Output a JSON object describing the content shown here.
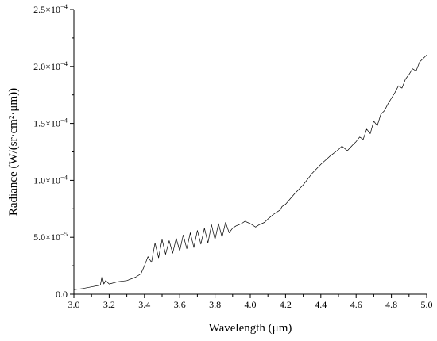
{
  "chart_data": {
    "type": "line",
    "title": "",
    "xlabel": "Wavelength (μm)",
    "ylabel": "Radiance (W/(sr·cm²·μm))",
    "xlim": [
      3.0,
      5.0
    ],
    "ylim": [
      0,
      0.00025
    ],
    "grid": false,
    "legend": "none",
    "x_ticks": [
      3.0,
      3.2,
      3.4,
      3.6,
      3.8,
      4.0,
      4.2,
      4.4,
      4.6,
      4.8,
      5.0
    ],
    "x_tick_labels": [
      "3.0",
      "3.2",
      "3.4",
      "3.6",
      "3.8",
      "4.0",
      "4.2",
      "4.4",
      "4.6",
      "4.8",
      "5.0"
    ],
    "y_ticks": [
      0,
      5e-05,
      0.0001,
      0.00015,
      0.0002,
      0.00025
    ],
    "y_tick_labels": [
      {
        "mantissa": "0.0",
        "exp": ""
      },
      {
        "mantissa": "5.0×10",
        "exp": "−5"
      },
      {
        "mantissa": "1.0×10",
        "exp": "−4"
      },
      {
        "mantissa": "1.5×10",
        "exp": "−4"
      },
      {
        "mantissa": "2.0×10",
        "exp": "−4"
      },
      {
        "mantissa": "2.5×10",
        "exp": "−4"
      }
    ],
    "series": [
      {
        "color": "#000000",
        "x": [
          3.0,
          3.05,
          3.1,
          3.15,
          3.16,
          3.17,
          3.18,
          3.2,
          3.25,
          3.3,
          3.35,
          3.38,
          3.4,
          3.42,
          3.44,
          3.46,
          3.48,
          3.5,
          3.52,
          3.54,
          3.56,
          3.58,
          3.6,
          3.62,
          3.64,
          3.66,
          3.68,
          3.7,
          3.72,
          3.74,
          3.76,
          3.78,
          3.8,
          3.82,
          3.84,
          3.86,
          3.88,
          3.9,
          3.92,
          3.95,
          3.97,
          4.0,
          4.03,
          4.05,
          4.08,
          4.1,
          4.13,
          4.15,
          4.17,
          4.18,
          4.2,
          4.25,
          4.3,
          4.35,
          4.4,
          4.45,
          4.5,
          4.52,
          4.55,
          4.58,
          4.6,
          4.62,
          4.64,
          4.66,
          4.68,
          4.7,
          4.72,
          4.74,
          4.76,
          4.78,
          4.8,
          4.82,
          4.84,
          4.86,
          4.88,
          4.9,
          4.92,
          4.94,
          4.96,
          4.98,
          5.0
        ],
        "y": [
          4e-06,
          5e-06,
          6.5e-06,
          8e-06,
          1.6e-05,
          9e-06,
          1.2e-05,
          9e-06,
          1.1e-05,
          1.2e-05,
          1.5e-05,
          1.8e-05,
          2.5e-05,
          3.3e-05,
          2.8e-05,
          4.5e-05,
          3.2e-05,
          4.8e-05,
          3.5e-05,
          4.7e-05,
          3.6e-05,
          4.9e-05,
          3.8e-05,
          5.2e-05,
          4e-05,
          5.4e-05,
          4.1e-05,
          5.6e-05,
          4.4e-05,
          5.8e-05,
          4.5e-05,
          6.1e-05,
          4.8e-05,
          6.2e-05,
          5e-05,
          6.3e-05,
          5.4e-05,
          5.8e-05,
          6e-05,
          6.2e-05,
          6.4e-05,
          6.2e-05,
          5.9e-05,
          6.1e-05,
          6.3e-05,
          6.6e-05,
          7e-05,
          7.2e-05,
          7.4e-05,
          7.7e-05,
          7.9e-05,
          8.8e-05,
          9.6e-05,
          0.000106,
          0.000114,
          0.000121,
          0.000127,
          0.00013,
          0.000126,
          0.000131,
          0.000134,
          0.000138,
          0.000136,
          0.000145,
          0.000141,
          0.000152,
          0.000148,
          0.000158,
          0.000161,
          0.000167,
          0.000172,
          0.000177,
          0.000183,
          0.000181,
          0.000189,
          0.000193,
          0.000198,
          0.000196,
          0.000204,
          0.000207,
          0.00021
        ]
      }
    ]
  }
}
